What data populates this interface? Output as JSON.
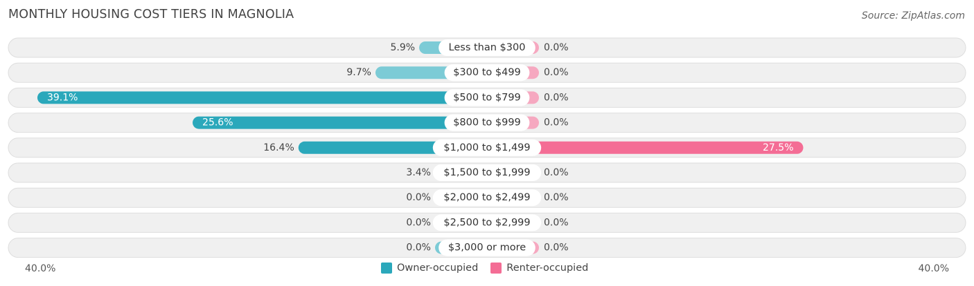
{
  "header": {
    "title": "MONTHLY HOUSING COST TIERS IN MAGNOLIA",
    "source": "Source: ZipAtlas.com"
  },
  "axis": {
    "left_label": "40.0%",
    "right_label": "40.0%"
  },
  "legend": {
    "owner_label": "Owner-occupied",
    "renter_label": "Renter-occupied"
  },
  "colors": {
    "owner": "#2ba8bb",
    "owner_light": "#7ccbd6",
    "renter": "#f46d95",
    "renter_light": "#f6a8c0",
    "row_bg": "#f0f0f0"
  },
  "chart_data": {
    "type": "bar",
    "orientation": "horizontal-diverging",
    "title": "MONTHLY HOUSING COST TIERS IN MAGNOLIA",
    "categories": [
      "Less than $300",
      "$300 to $499",
      "$500 to $799",
      "$800 to $999",
      "$1,000 to $1,499",
      "$1,500 to $1,999",
      "$2,000 to $2,499",
      "$2,500 to $2,999",
      "$3,000 or more"
    ],
    "series": [
      {
        "name": "Owner-occupied",
        "values": [
          5.9,
          9.7,
          39.1,
          25.6,
          16.4,
          3.4,
          0.0,
          0.0,
          0.0
        ],
        "labels": [
          "5.9%",
          "9.7%",
          "39.1%",
          "25.6%",
          "16.4%",
          "3.4%",
          "0.0%",
          "0.0%",
          "0.0%"
        ]
      },
      {
        "name": "Renter-occupied",
        "values": [
          0.0,
          0.0,
          0.0,
          0.0,
          27.5,
          0.0,
          0.0,
          0.0,
          0.0
        ],
        "labels": [
          "0.0%",
          "0.0%",
          "0.0%",
          "0.0%",
          "27.5%",
          "0.0%",
          "0.0%",
          "0.0%",
          "0.0%"
        ]
      }
    ],
    "xlim": [
      -40,
      40
    ],
    "legend_position": "bottom-center"
  }
}
